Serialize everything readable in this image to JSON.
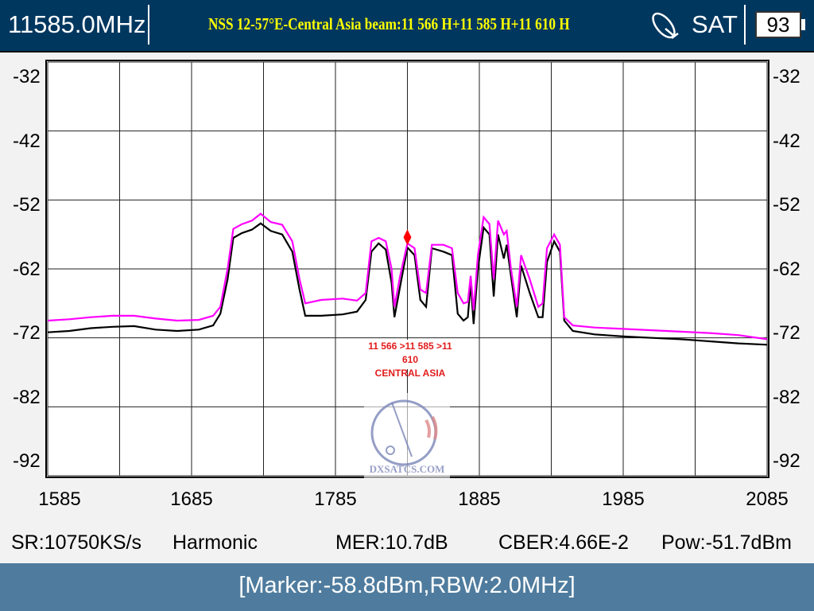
{
  "header": {
    "frequency": "11585.0MHz",
    "title": "NSS 12-57°E-Central Asia beam:11 566 H+11 585 H+11 610 H",
    "mode": "SAT",
    "battery": "93",
    "icons": [
      "satellite-dish-icon",
      "battery-icon"
    ]
  },
  "colors": {
    "header_bg": "#00375f",
    "title": "#ffff00",
    "trace_max": "#ff00ff",
    "trace_live": "#000000",
    "marker": "#ff0000",
    "footer_bg": "#4f7c9e"
  },
  "overlay": {
    "line1": "11 566 >11 585 >11 610",
    "line2": "CENTRAL ASIA",
    "watermark": "DXSATCS.COM"
  },
  "stats": {
    "sr": "SR:10750KS/s",
    "harmonic": "Harmonic",
    "mer": "MER:10.7dB",
    "cber": "CBER:4.66E-2",
    "pow": "Pow:-51.7dBm"
  },
  "footer": {
    "marker": "[Marker:-58.8dBm,RBW:2.0MHz]"
  },
  "chart_data": {
    "type": "line",
    "xlim": [
      1585,
      2085
    ],
    "ylim": [
      -92,
      -32
    ],
    "x_ticks": [
      "1585",
      "1685",
      "1785",
      "1885",
      "1985",
      "2085"
    ],
    "y_ticks": [
      "-32",
      "-42",
      "-52",
      "-62",
      "-72",
      "-82",
      "-92"
    ],
    "grid": true,
    "marker": {
      "x": 1835,
      "y": -58.8
    },
    "x": [
      1585,
      1600,
      1615,
      1630,
      1645,
      1660,
      1675,
      1690,
      1700,
      1705,
      1710,
      1714,
      1720,
      1727,
      1733,
      1740,
      1748,
      1755,
      1760,
      1764,
      1775,
      1790,
      1800,
      1806,
      1810,
      1815,
      1820,
      1824,
      1826,
      1830,
      1835,
      1840,
      1844,
      1848,
      1852,
      1860,
      1866,
      1870,
      1874,
      1877,
      1879,
      1881,
      1884,
      1888,
      1892,
      1895,
      1898,
      1902,
      1904,
      1907,
      1911,
      1914,
      1920,
      1926,
      1929,
      1932,
      1937,
      1941,
      1944,
      1950,
      1965,
      1985,
      2005,
      2025,
      2045,
      2065,
      2085
    ],
    "series": [
      {
        "color": "#ff00ff",
        "values": [
          -69.5,
          -69.3,
          -69.0,
          -68.8,
          -68.8,
          -69.2,
          -69.5,
          -69.4,
          -68.8,
          -67.5,
          -62.0,
          -56.2,
          -55.5,
          -55.0,
          -54.0,
          -55.2,
          -55.6,
          -58.0,
          -63.5,
          -67.0,
          -66.5,
          -66.3,
          -66.6,
          -65.5,
          -58.0,
          -57.5,
          -58.0,
          -62.0,
          -67.5,
          -63.0,
          -58.3,
          -59.0,
          -65.0,
          -65.5,
          -58.5,
          -58.5,
          -59.0,
          -65.5,
          -67.0,
          -66.8,
          -63.0,
          -68.0,
          -60.0,
          -54.5,
          -55.5,
          -63.5,
          -55.0,
          -57.0,
          -56.5,
          -62.0,
          -67.5,
          -60.0,
          -63.5,
          -67.5,
          -67.0,
          -59.0,
          -57.0,
          -58.5,
          -69.0,
          -70.2,
          -70.5,
          -70.7,
          -70.9,
          -71.1,
          -71.3,
          -71.6,
          -72.2
        ]
      },
      {
        "color": "#000000",
        "values": [
          -71.2,
          -71.0,
          -70.6,
          -70.4,
          -70.3,
          -70.8,
          -71.0,
          -70.8,
          -70.2,
          -68.5,
          -63.5,
          -57.5,
          -56.8,
          -56.3,
          -55.4,
          -56.5,
          -57.0,
          -59.5,
          -65.0,
          -68.8,
          -68.8,
          -68.6,
          -68.2,
          -66.5,
          -59.5,
          -58.3,
          -59.2,
          -64.0,
          -69.0,
          -64.5,
          -58.9,
          -60.0,
          -66.5,
          -67.5,
          -59.0,
          -59.5,
          -60.0,
          -68.5,
          -69.5,
          -69.0,
          -64.0,
          -70.0,
          -62.0,
          -56.0,
          -57.0,
          -66.0,
          -57.0,
          -60.5,
          -58.5,
          -63.0,
          -69.0,
          -61.5,
          -65.5,
          -69.0,
          -69.0,
          -61.0,
          -58.0,
          -59.5,
          -69.5,
          -71.0,
          -71.5,
          -71.8,
          -72.0,
          -72.2,
          -72.5,
          -72.8,
          -73.0
        ]
      }
    ]
  }
}
